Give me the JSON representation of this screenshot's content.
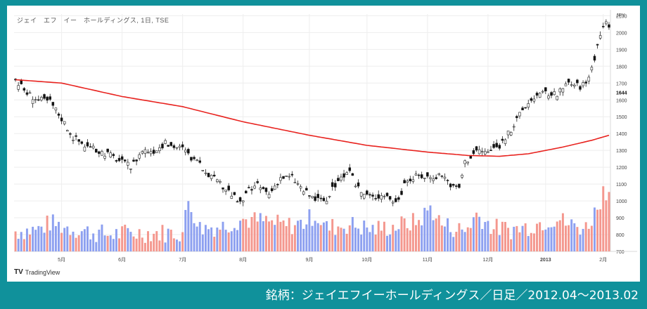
{
  "caption": "銘柄：ジェイエフイーホールディングス／日足／2012.04〜2013.02",
  "chart_title": "ジェイ　エフ　イー　ホールディングス, 1日, TSE",
  "brand": "TradingView",
  "currency": "JPY",
  "colors": {
    "up": "#26a69a",
    "down": "#111111",
    "ma": "#e8231f",
    "volume_up": "#f4978e",
    "volume_down": "#8da0f0",
    "frame": "#10919b",
    "background": "#ffffff"
  },
  "chart_data": {
    "type": "candlestick",
    "title": "ジェイ　エフ　イー　ホールディングス, 1日, TSE",
    "y_ticks": [
      700,
      800,
      900,
      1000,
      1100,
      1200,
      1300,
      1400,
      1500,
      1600,
      1700,
      1800,
      1900,
      2000,
      2100
    ],
    "ylim": [
      700,
      2110
    ],
    "last_price_label": "1644",
    "x_ticks": [
      {
        "label": "5月",
        "i": 16
      },
      {
        "label": "6月",
        "i": 37
      },
      {
        "label": "7月",
        "i": 58
      },
      {
        "label": "8月",
        "i": 79
      },
      {
        "label": "9月",
        "i": 102
      },
      {
        "label": "10月",
        "i": 122
      },
      {
        "label": "11月",
        "i": 143
      },
      {
        "label": "12月",
        "i": 164
      },
      {
        "label": "2013",
        "i": 184
      },
      {
        "label": "2月",
        "i": 204
      }
    ],
    "close_path": [
      [
        0,
        1720
      ],
      [
        4,
        1640
      ],
      [
        8,
        1600
      ],
      [
        12,
        1590
      ],
      [
        16,
        1490
      ],
      [
        20,
        1380
      ],
      [
        24,
        1330
      ],
      [
        28,
        1300
      ],
      [
        32,
        1280
      ],
      [
        36,
        1240
      ],
      [
        40,
        1200
      ],
      [
        44,
        1300
      ],
      [
        48,
        1300
      ],
      [
        52,
        1340
      ],
      [
        56,
        1320
      ],
      [
        58,
        1310
      ],
      [
        62,
        1240
      ],
      [
        66,
        1180
      ],
      [
        70,
        1110
      ],
      [
        74,
        1060
      ],
      [
        78,
        980
      ],
      [
        81,
        1060
      ],
      [
        84,
        1090
      ],
      [
        88,
        1040
      ],
      [
        92,
        1140
      ],
      [
        96,
        1140
      ],
      [
        100,
        1060
      ],
      [
        104,
        1010
      ],
      [
        108,
        1000
      ],
      [
        112,
        1130
      ],
      [
        116,
        1160
      ],
      [
        120,
        1050
      ],
      [
        124,
        1020
      ],
      [
        128,
        1040
      ],
      [
        132,
        990
      ],
      [
        136,
        1120
      ],
      [
        140,
        1150
      ],
      [
        144,
        1140
      ],
      [
        148,
        1160
      ],
      [
        152,
        1080
      ],
      [
        154,
        1080
      ],
      [
        156,
        1230
      ],
      [
        160,
        1300
      ],
      [
        164,
        1290
      ],
      [
        168,
        1330
      ],
      [
        172,
        1420
      ],
      [
        176,
        1540
      ],
      [
        180,
        1620
      ],
      [
        184,
        1640
      ],
      [
        188,
        1630
      ],
      [
        192,
        1700
      ],
      [
        196,
        1680
      ],
      [
        198,
        1700
      ],
      [
        200,
        1790
      ],
      [
        202,
        1920
      ],
      [
        204,
        2050
      ]
    ],
    "ma_path": [
      [
        0,
        1720
      ],
      [
        16,
        1700
      ],
      [
        37,
        1620
      ],
      [
        58,
        1560
      ],
      [
        79,
        1470
      ],
      [
        102,
        1390
      ],
      [
        122,
        1330
      ],
      [
        143,
        1290
      ],
      [
        157,
        1270
      ],
      [
        168,
        1265
      ],
      [
        178,
        1280
      ],
      [
        190,
        1320
      ],
      [
        200,
        1360
      ],
      [
        206,
        1390
      ]
    ],
    "volume_path": [
      [
        0,
        820
      ],
      [
        8,
        830
      ],
      [
        12,
        870
      ],
      [
        16,
        850
      ],
      [
        24,
        820
      ],
      [
        32,
        800
      ],
      [
        40,
        810
      ],
      [
        48,
        810
      ],
      [
        58,
        810
      ],
      [
        60,
        1000
      ],
      [
        64,
        840
      ],
      [
        72,
        850
      ],
      [
        78,
        890
      ],
      [
        86,
        880
      ],
      [
        94,
        850
      ],
      [
        100,
        870
      ],
      [
        104,
        920
      ],
      [
        108,
        840
      ],
      [
        116,
        860
      ],
      [
        124,
        830
      ],
      [
        132,
        850
      ],
      [
        140,
        880
      ],
      [
        144,
        960
      ],
      [
        148,
        860
      ],
      [
        156,
        820
      ],
      [
        160,
        920
      ],
      [
        166,
        840
      ],
      [
        172,
        830
      ],
      [
        176,
        840
      ],
      [
        180,
        860
      ],
      [
        184,
        880
      ],
      [
        188,
        900
      ],
      [
        192,
        860
      ],
      [
        198,
        840
      ],
      [
        200,
        900
      ],
      [
        202,
        960
      ],
      [
        204,
        1060
      ]
    ]
  }
}
